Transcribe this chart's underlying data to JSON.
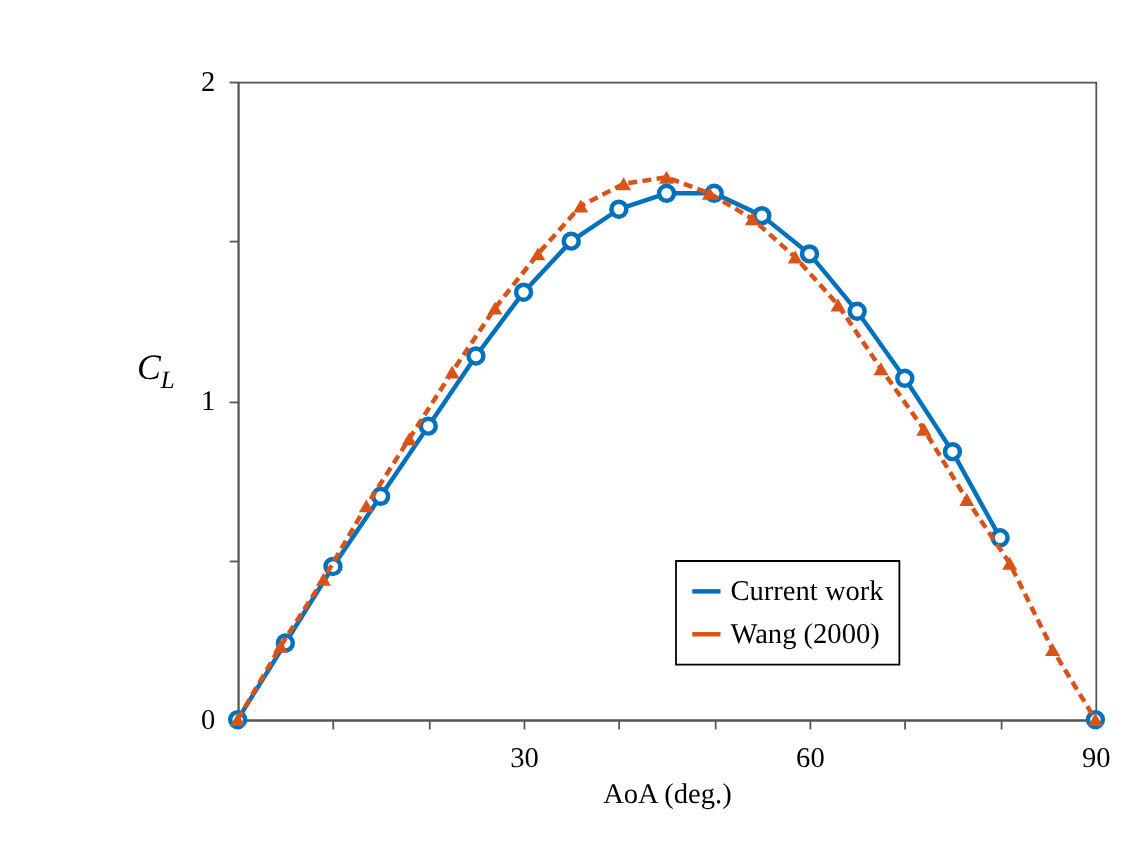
{
  "chart_data": {
    "type": "line",
    "xlabel": "AoA (deg.)",
    "ylabel": "C$_{L}$",
    "xlim": [
      0,
      90
    ],
    "ylim": [
      0,
      2
    ],
    "xticks": [
      {
        "value": 0,
        "label": null
      },
      {
        "value": 10,
        "label": null
      },
      {
        "value": 20,
        "label": null
      },
      30,
      {
        "value": 40,
        "label": null
      },
      {
        "value": 50,
        "label": null
      },
      60,
      {
        "value": 70,
        "label": null
      },
      {
        "value": 80,
        "label": null
      },
      90
    ],
    "yticks": [
      0,
      {
        "value": 0.5,
        "label": null
      },
      1,
      {
        "value": 1.5,
        "label": null
      },
      2
    ],
    "grid": false,
    "legend": "bottom right",
    "series": [
      {
        "name": "Current work",
        "color": "#0072bd",
        "marker": "circle",
        "line_style": "solid",
        "x": [
          0,
          5,
          10,
          15,
          20,
          25,
          30,
          35,
          40,
          45,
          50,
          55,
          60,
          65,
          70,
          75,
          80,
          85,
          90
        ],
        "values": [
          0,
          0.24,
          0.48,
          0.7,
          0.92,
          1.14,
          1.34,
          1.5,
          1.6,
          1.65,
          1.65,
          1.58,
          1.46,
          1.28,
          1.07,
          0.84,
          0.57,
          null,
          0
        ]
      },
      {
        "name": "Wang (2000)",
        "color": "#d95319",
        "marker": "triangle",
        "line_style": "dashed",
        "x": [
          0,
          4.5,
          9,
          13.5,
          18,
          22.5,
          27,
          31.5,
          36,
          40.5,
          45,
          49.5,
          54,
          58.5,
          63,
          67.5,
          72,
          76.5,
          81,
          85.5,
          90
        ],
        "values": [
          0,
          0.23,
          0.44,
          0.67,
          0.88,
          1.09,
          1.29,
          1.46,
          1.61,
          1.68,
          1.7,
          1.65,
          1.57,
          1.45,
          1.3,
          1.1,
          0.91,
          0.69,
          0.49,
          0.22,
          0
        ]
      }
    ]
  }
}
